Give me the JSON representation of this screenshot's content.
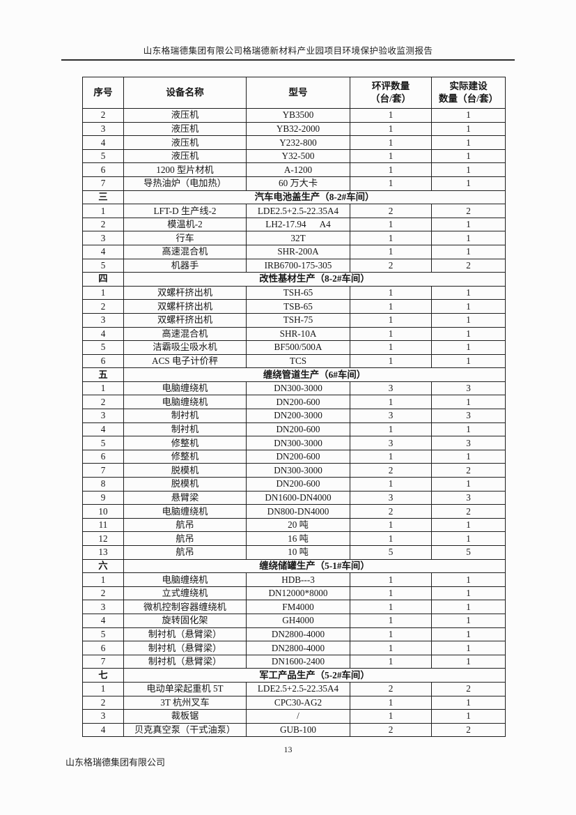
{
  "page": {
    "header_title": "山东格瑞德集团有限公司格瑞德新材料产业园项目环境保护验收监测报告",
    "page_number": "13",
    "footer_text": "山东格瑞德集团有限公司"
  },
  "table": {
    "headers": {
      "no": "序号",
      "name": "设备名称",
      "model": "型号",
      "eia": "环评数量\n（台/套）",
      "actual": "实际建设\n数量（台/套）"
    },
    "rows": [
      {
        "no": "2",
        "name": "液压机",
        "model": "YB3500",
        "eia": "1",
        "actual": "1"
      },
      {
        "no": "3",
        "name": "液压机",
        "model": "YB32-2000",
        "eia": "1",
        "actual": "1"
      },
      {
        "no": "4",
        "name": "液压机",
        "model": "Y232-800",
        "eia": "1",
        "actual": "1"
      },
      {
        "no": "5",
        "name": "液压机",
        "model": "Y32-500",
        "eia": "1",
        "actual": "1"
      },
      {
        "no": "6",
        "name": "1200 型片材机",
        "model": "A-1200",
        "eia": "1",
        "actual": "1"
      },
      {
        "no": "7",
        "name": "导热油炉（电加热）",
        "model": "60 万大卡",
        "eia": "1",
        "actual": "1"
      },
      {
        "type": "section",
        "no": "三",
        "title": "汽车电池盖生产（8-2#车间）"
      },
      {
        "no": "1",
        "name": "LFT-D 生产线-2",
        "model": "LDE2.5+2.5-22.35A4",
        "eia": "2",
        "actual": "2"
      },
      {
        "no": "2",
        "name": "模温机-2",
        "model": "LH2-17.94      A4",
        "eia": "1",
        "actual": "1"
      },
      {
        "no": "3",
        "name": "行车",
        "model": "32T",
        "eia": "1",
        "actual": "1"
      },
      {
        "no": "4",
        "name": "高速混合机",
        "model": "SHR-200A",
        "eia": "1",
        "actual": "1"
      },
      {
        "no": "5",
        "name": "机器手",
        "model": "IRB6700-175-305",
        "eia": "2",
        "actual": "2"
      },
      {
        "type": "section",
        "no": "四",
        "title": "改性基材生产（8-2#车间）"
      },
      {
        "no": "1",
        "name": "双螺杆挤出机",
        "model": "TSH-65",
        "eia": "1",
        "actual": "1"
      },
      {
        "no": "2",
        "name": "双螺杆挤出机",
        "model": "TSB-65",
        "eia": "1",
        "actual": "1"
      },
      {
        "no": "3",
        "name": "双螺杆挤出机",
        "model": "TSH-75",
        "eia": "1",
        "actual": "1"
      },
      {
        "no": "4",
        "name": "高速混合机",
        "model": "SHR-10A",
        "eia": "1",
        "actual": "1"
      },
      {
        "no": "5",
        "name": "洁霸吸尘吸水机",
        "model": "BF500/500A",
        "eia": "1",
        "actual": "1"
      },
      {
        "no": "6",
        "name": "ACS 电子计价秤",
        "model": "TCS",
        "eia": "1",
        "actual": "1"
      },
      {
        "type": "section",
        "no": "五",
        "title": "缠绕管道生产（6#车间）"
      },
      {
        "no": "1",
        "name": "电脑缠绕机",
        "model": "DN300-3000",
        "eia": "3",
        "actual": "3"
      },
      {
        "no": "2",
        "name": "电脑缠绕机",
        "model": "DN200-600",
        "eia": "1",
        "actual": "1"
      },
      {
        "no": "3",
        "name": "制衬机",
        "model": "DN200-3000",
        "eia": "3",
        "actual": "3"
      },
      {
        "no": "4",
        "name": "制衬机",
        "model": "DN200-600",
        "eia": "1",
        "actual": "1"
      },
      {
        "no": "5",
        "name": "修整机",
        "model": "DN300-3000",
        "eia": "3",
        "actual": "3"
      },
      {
        "no": "6",
        "name": "修整机",
        "model": "DN200-600",
        "eia": "1",
        "actual": "1"
      },
      {
        "no": "7",
        "name": "脱模机",
        "model": "DN300-3000",
        "eia": "2",
        "actual": "2"
      },
      {
        "no": "8",
        "name": "脱模机",
        "model": "DN200-600",
        "eia": "1",
        "actual": "1"
      },
      {
        "no": "9",
        "name": "悬臂梁",
        "model": "DN1600-DN4000",
        "eia": "3",
        "actual": "3"
      },
      {
        "no": "10",
        "name": "电脑缠绕机",
        "model": "DN800-DN4000",
        "eia": "2",
        "actual": "2"
      },
      {
        "no": "11",
        "name": "航吊",
        "model": "20 吨",
        "eia": "1",
        "actual": "1"
      },
      {
        "no": "12",
        "name": "航吊",
        "model": "16 吨",
        "eia": "1",
        "actual": "1"
      },
      {
        "no": "13",
        "name": "航吊",
        "model": "10 吨",
        "eia": "5",
        "actual": "5"
      },
      {
        "type": "section",
        "no": "六",
        "title": "缠绕储罐生产（5-1#车间）"
      },
      {
        "no": "1",
        "name": "电脑缠绕机",
        "model": "HDB---3",
        "eia": "1",
        "actual": "1"
      },
      {
        "no": "2",
        "name": "立式缠绕机",
        "model": "DN12000*8000",
        "eia": "1",
        "actual": "1"
      },
      {
        "no": "3",
        "name": "微机控制容器缠绕机",
        "model": "FM4000",
        "eia": "1",
        "actual": "1"
      },
      {
        "no": "4",
        "name": "旋转固化架",
        "model": "GH4000",
        "eia": "1",
        "actual": "1"
      },
      {
        "no": "5",
        "name": "制衬机（悬臂梁）",
        "model": "DN2800-4000",
        "eia": "1",
        "actual": "1"
      },
      {
        "no": "6",
        "name": "制衬机（悬臂梁）",
        "model": "DN2800-4000",
        "eia": "1",
        "actual": "1"
      },
      {
        "no": "7",
        "name": "制衬机（悬臂梁）",
        "model": "DN1600-2400",
        "eia": "1",
        "actual": "1"
      },
      {
        "type": "section",
        "no": "七",
        "title": "军工产品生产（5-2#车间）"
      },
      {
        "no": "1",
        "name": "电动单梁起重机 5T",
        "model": "LDE2.5+2.5-22.35A4",
        "eia": "2",
        "actual": "2"
      },
      {
        "no": "2",
        "name": "3T 杭州叉车",
        "model": "CPC30-AG2",
        "eia": "1",
        "actual": "1"
      },
      {
        "no": "3",
        "name": "裁板锯",
        "model": "/",
        "eia": "1",
        "actual": "1"
      },
      {
        "no": "4",
        "name": "贝克真空泵（干式油泵）",
        "model": "GUB-100",
        "eia": "2",
        "actual": "2"
      }
    ]
  }
}
